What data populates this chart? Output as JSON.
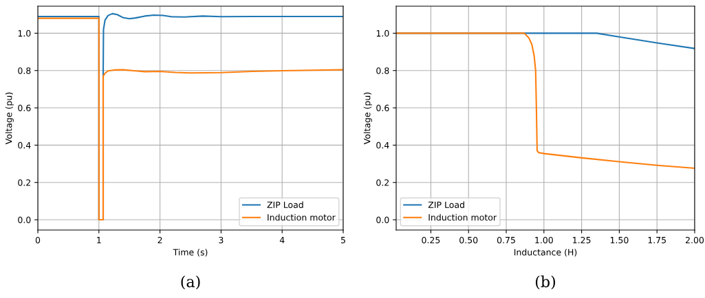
{
  "chart_data": [
    {
      "type": "line",
      "xlabel": "Time (s)",
      "ylabel": "Voltage (pu)",
      "annotations": [
        "(a)"
      ],
      "xlim": [
        0,
        5
      ],
      "ylim": [
        -0.055,
        1.145
      ],
      "xticks": [
        0,
        1,
        2,
        3,
        4,
        5
      ],
      "yticks": [
        {
          "value": 0,
          "label": "0.0"
        },
        {
          "value": 0.2,
          "label": "0.2"
        },
        {
          "value": 0.4,
          "label": "0.4"
        },
        {
          "value": 0.6,
          "label": "0.6"
        },
        {
          "value": 0.8,
          "label": "0.8"
        },
        {
          "value": 1.0,
          "label": "1.0"
        }
      ],
      "grid": true,
      "legend": "bottom right",
      "series": [
        {
          "name": "ZIP Load",
          "color": "#1f77b4",
          "x": [
            0,
            1.0,
            1.0,
            1.07,
            1.07,
            1.075,
            1.1,
            1.15,
            1.22,
            1.3,
            1.4,
            1.5,
            1.6,
            1.75,
            1.9,
            2.05,
            2.2,
            2.4,
            2.7,
            3.0,
            3.5,
            5
          ],
          "values": [
            1.09,
            1.09,
            0,
            0,
            0.78,
            1.02,
            1.07,
            1.095,
            1.105,
            1.1,
            1.083,
            1.078,
            1.082,
            1.092,
            1.097,
            1.095,
            1.088,
            1.087,
            1.092,
            1.089,
            1.09,
            1.09
          ]
        },
        {
          "name": "Induction motor",
          "color": "#ff7f0e",
          "x": [
            0,
            1.0,
            1.0,
            1.07,
            1.07,
            1.1,
            1.15,
            1.25,
            1.4,
            1.6,
            1.75,
            2.0,
            2.25,
            2.5,
            3.0,
            3.5,
            4.0,
            4.5,
            5
          ],
          "values": [
            1.08,
            1.08,
            0,
            0,
            0.77,
            0.785,
            0.798,
            0.803,
            0.804,
            0.798,
            0.794,
            0.795,
            0.79,
            0.787,
            0.789,
            0.795,
            0.799,
            0.802,
            0.804
          ]
        }
      ]
    },
    {
      "type": "line",
      "xlabel": "Inductance (H)",
      "ylabel": "Voltage (pu)",
      "annotations": [
        "(b)"
      ],
      "xlim": [
        0.02,
        2.0
      ],
      "ylim": [
        -0.055,
        1.145
      ],
      "xticks": [
        {
          "value": 0.25,
          "label": "0.25"
        },
        {
          "value": 0.5,
          "label": "0.50"
        },
        {
          "value": 0.75,
          "label": "0.75"
        },
        {
          "value": 1.0,
          "label": "1.00"
        },
        {
          "value": 1.25,
          "label": "1.25"
        },
        {
          "value": 1.5,
          "label": "1.50"
        },
        {
          "value": 1.75,
          "label": "1.75"
        },
        {
          "value": 2.0,
          "label": "2.00"
        }
      ],
      "yticks": [
        {
          "value": 0,
          "label": "0.0"
        },
        {
          "value": 0.2,
          "label": "0.2"
        },
        {
          "value": 0.4,
          "label": "0.4"
        },
        {
          "value": 0.6,
          "label": "0.6"
        },
        {
          "value": 0.8,
          "label": "0.8"
        },
        {
          "value": 1.0,
          "label": "1.0"
        }
      ],
      "grid": true,
      "legend": "bottom left",
      "series": [
        {
          "name": "ZIP Load",
          "color": "#1f77b4",
          "x": [
            0.02,
            1.35,
            1.5,
            1.75,
            2.0
          ],
          "values": [
            1.0,
            1.0,
            0.98,
            0.948,
            0.918
          ]
        },
        {
          "name": "Induction motor",
          "color": "#ff7f0e",
          "x": [
            0.02,
            0.87,
            0.9,
            0.92,
            0.935,
            0.945,
            0.95,
            0.955,
            0.965,
            1.0,
            1.25,
            1.5,
            1.75,
            2.0
          ],
          "values": [
            1.0,
            1.0,
            0.975,
            0.94,
            0.88,
            0.8,
            0.6,
            0.37,
            0.36,
            0.355,
            0.332,
            0.311,
            0.292,
            0.276
          ]
        }
      ]
    }
  ]
}
